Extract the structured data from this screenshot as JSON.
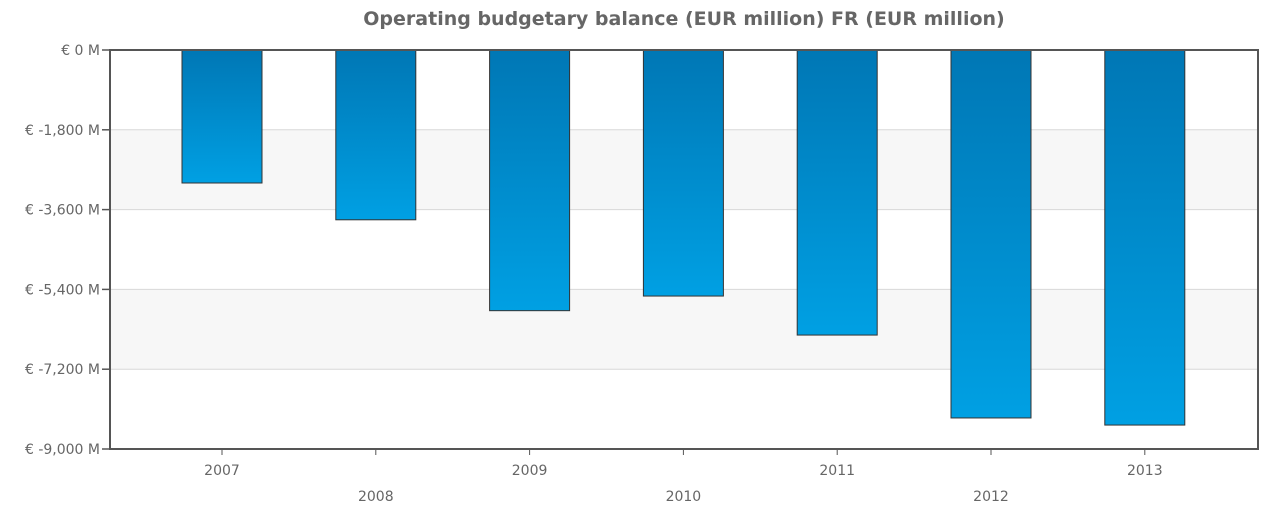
{
  "chart_data": {
    "type": "bar",
    "title": "Operating budgetary balance (EUR million) FR (EUR million)",
    "xlabel": "",
    "ylabel": "",
    "categories": [
      "2007",
      "2008",
      "2009",
      "2010",
      "2011",
      "2012",
      "2013"
    ],
    "values": [
      -3000,
      -3830,
      -5880,
      -5550,
      -6430,
      -8300,
      -8460
    ],
    "ylim": [
      -9000,
      0
    ],
    "yticks": [
      0,
      -1800,
      -3600,
      -5400,
      -7200,
      -9000
    ],
    "ytick_labels": [
      "€ 0 M",
      "€ -1,800 M",
      "€ -3,600 M",
      "€ -5,400 M",
      "€ -7,200 M",
      "€ -9,000 M"
    ],
    "grid": true,
    "colors": {
      "bar_top": "#0077b5",
      "bar_bottom": "#00a0e3",
      "band": "#f7f7f7",
      "grid": "#d8d8d8",
      "axis": "#555555",
      "text": "#666666"
    }
  }
}
